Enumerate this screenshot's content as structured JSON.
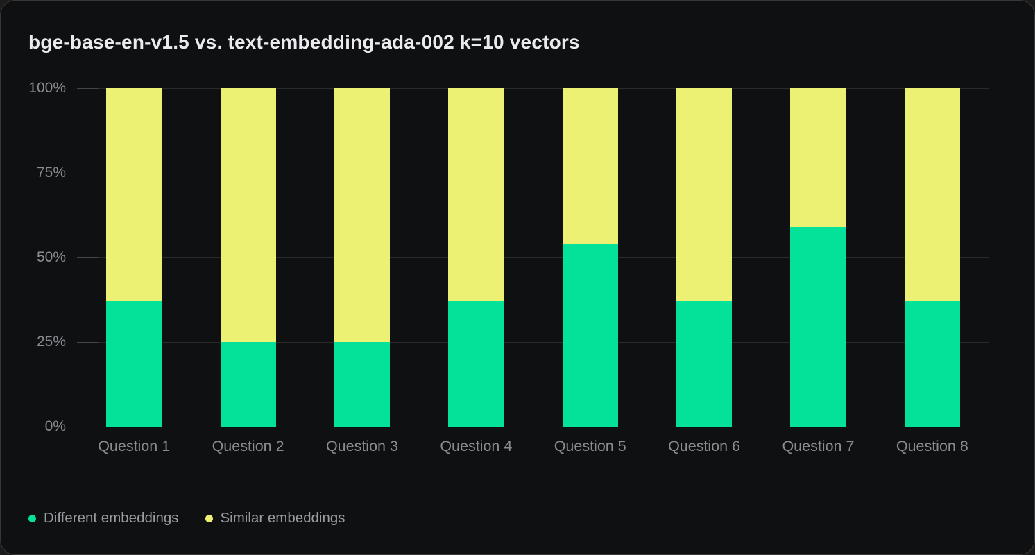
{
  "card": {
    "background": "#0f1011",
    "border_color": "#383838"
  },
  "chart_data": {
    "type": "bar",
    "stacked": true,
    "stacked_unit": "percent",
    "title": "bge-base-en-v1.5 vs. text-embedding-ada-002 k=10 vectors",
    "categories": [
      "Question 1",
      "Question 2",
      "Question 3",
      "Question 4",
      "Question 5",
      "Question 6",
      "Question 7",
      "Question 8"
    ],
    "series": [
      {
        "name": "Different embeddings",
        "color": "#04e29a",
        "values": [
          37,
          25,
          25,
          37,
          54,
          37,
          59,
          37
        ]
      },
      {
        "name": "Similar embeddings",
        "color": "#edf173",
        "values": [
          63,
          75,
          75,
          63,
          46,
          63,
          41,
          63
        ]
      }
    ],
    "y_ticks": [
      {
        "value": 100,
        "label": "100%"
      },
      {
        "value": 75,
        "label": "75%"
      },
      {
        "value": 50,
        "label": "50%"
      },
      {
        "value": 25,
        "label": "25%"
      },
      {
        "value": 0,
        "label": "0%"
      }
    ],
    "ylim": [
      0,
      100
    ],
    "grid": true,
    "legend_position": "bottom-left",
    "text_colors": {
      "title": "#eaeaef",
      "axis_labels": "#8b8b92",
      "legend_labels": "#9b9ba2"
    }
  }
}
